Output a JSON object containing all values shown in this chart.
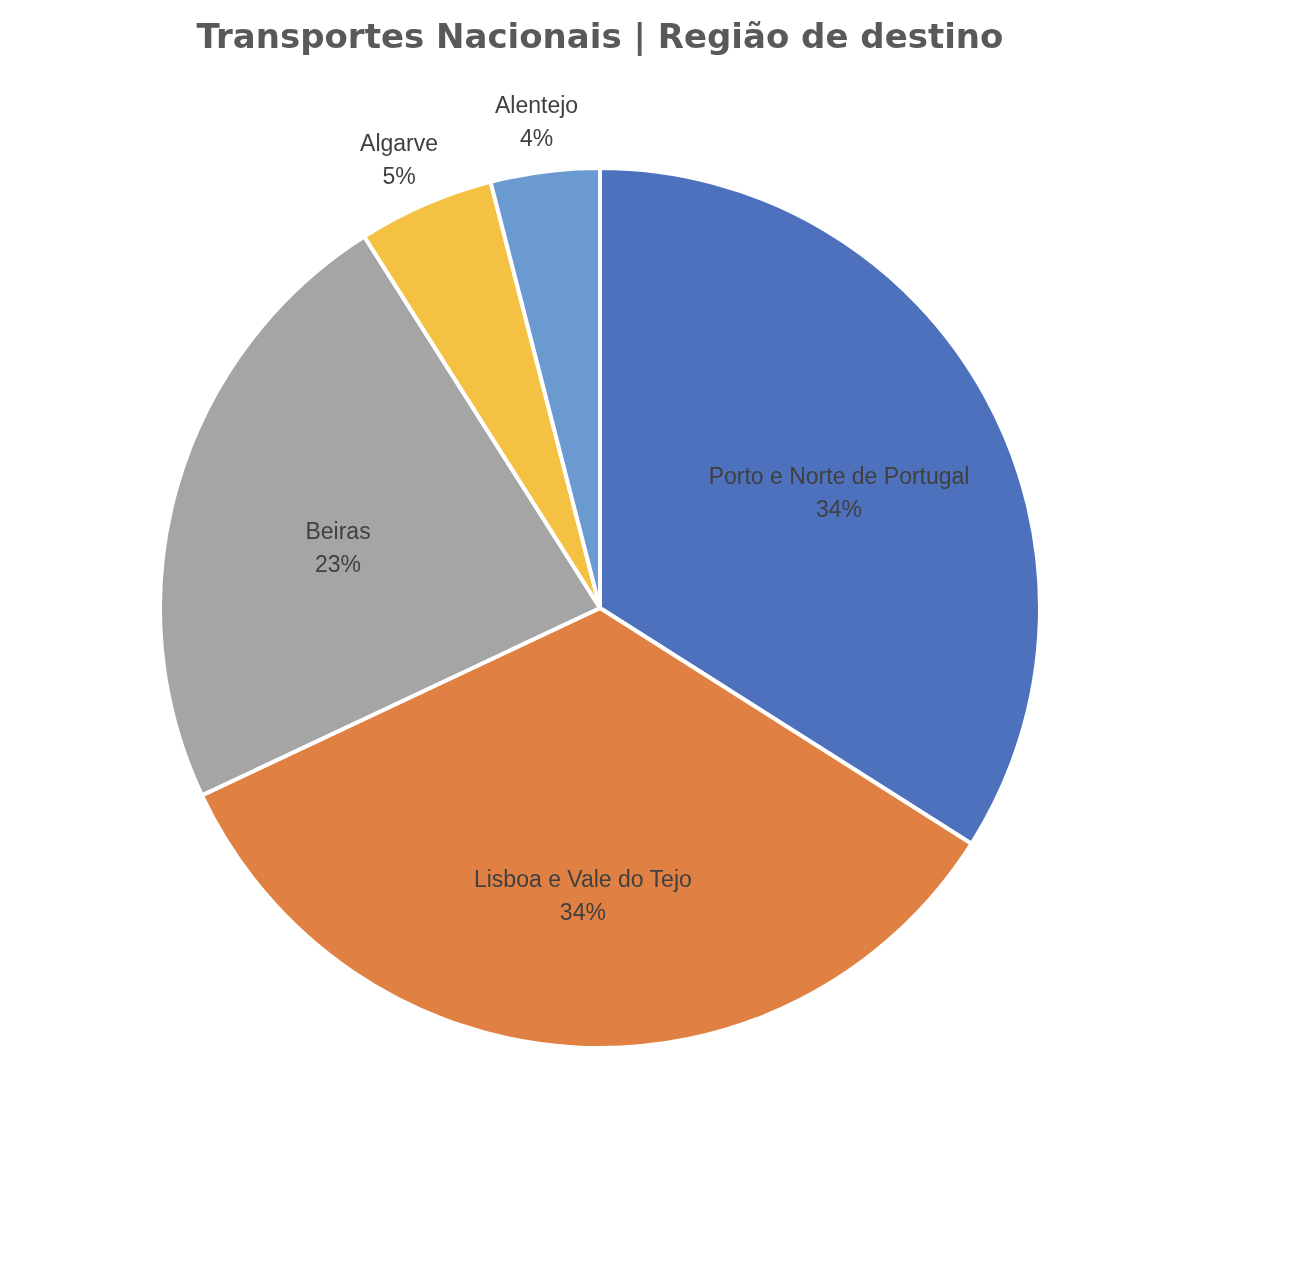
{
  "chart_data": {
    "type": "pie",
    "title": "Transportes Nacionais | Região de destino",
    "categories": [
      "Porto e Norte de Portugal",
      "Lisboa e Vale do Tejo",
      "Beiras",
      "Algarve",
      "Alentejo"
    ],
    "values": [
      34,
      34,
      23,
      5,
      4
    ],
    "colors": [
      "#4e71be",
      "#e08143",
      "#a5a5a5",
      "#f5c143",
      "#6a9ad0"
    ],
    "value_labels": [
      "34%",
      "34%",
      "23%",
      "5%",
      "4%"
    ],
    "legend": false
  }
}
